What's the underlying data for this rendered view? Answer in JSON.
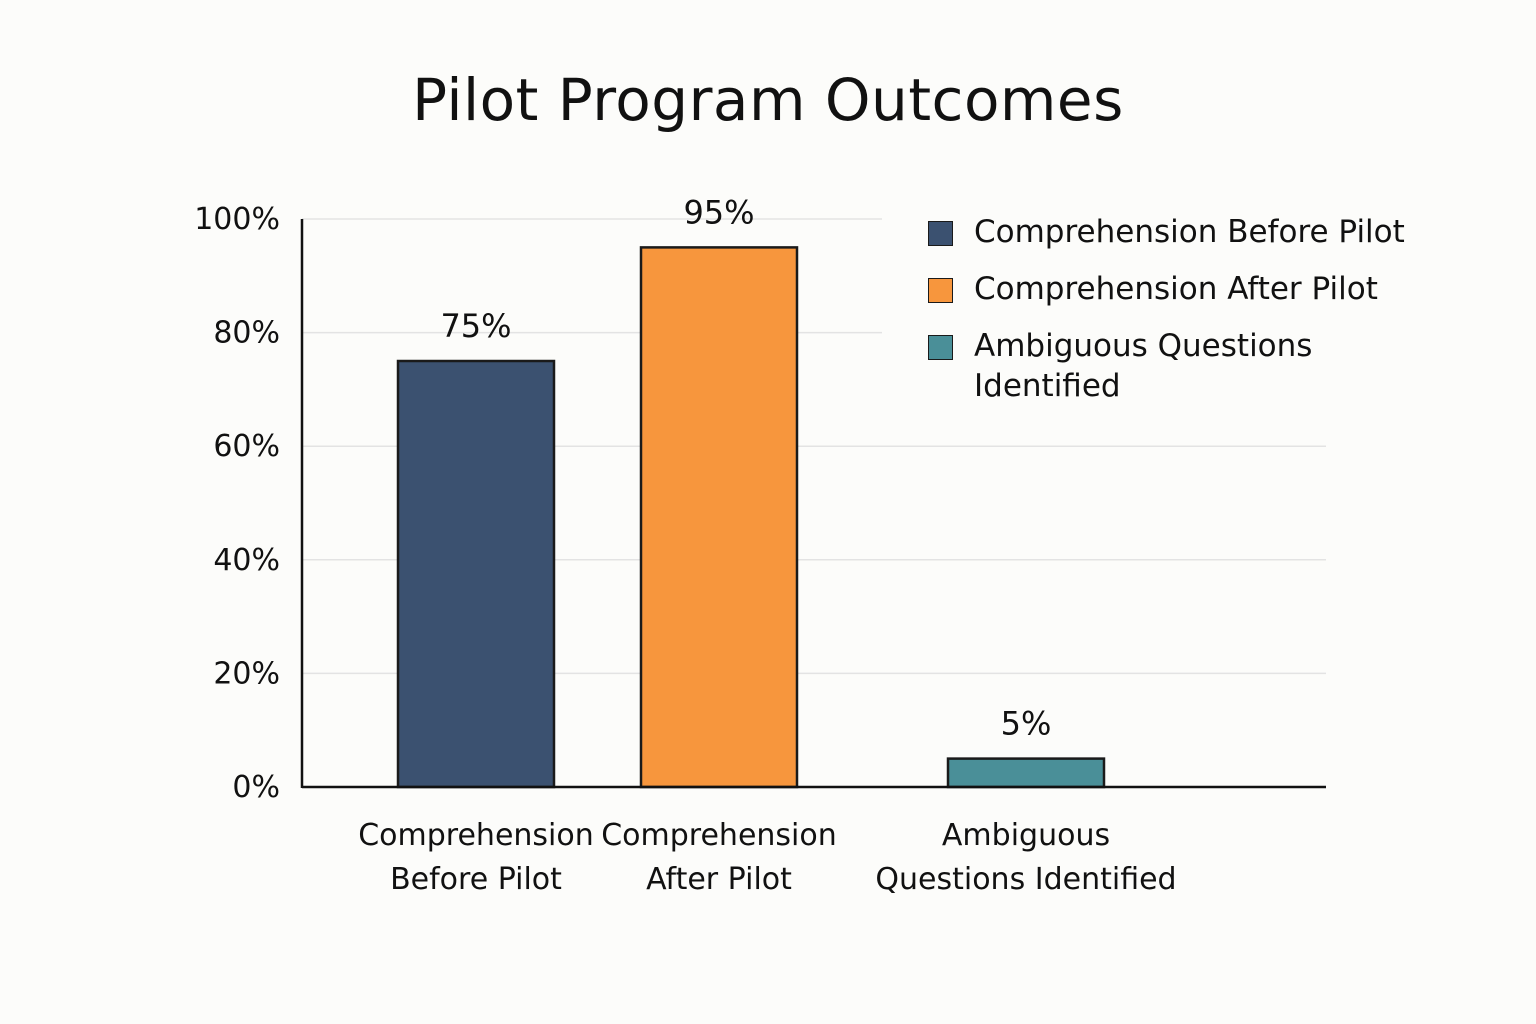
{
  "chart_data": {
    "type": "bar",
    "title": "Pilot Program Outcomes",
    "categories": [
      [
        "Comprehension",
        "Before Pilot"
      ],
      [
        "Comprehension",
        "After Pilot"
      ],
      [
        "Ambiguous",
        "Questions Identified"
      ]
    ],
    "values": [
      75,
      95,
      5
    ],
    "value_labels": [
      "75%",
      "95%",
      "5%"
    ],
    "colors": [
      "#3b5170",
      "#f7963d",
      "#4a8f98"
    ],
    "ylim": [
      0,
      100
    ],
    "yticks": [
      0,
      20,
      40,
      60,
      80,
      100
    ],
    "ytick_labels": [
      "0%",
      "20%",
      "40%",
      "60%",
      "80%",
      "100%"
    ],
    "grid": true,
    "legend_position": "top-right",
    "legend": [
      {
        "label": "Comprehension Before Pilot",
        "color": "#3b5170"
      },
      {
        "label": "Comprehension After Pilot",
        "color": "#f7963d"
      },
      {
        "label": "Ambiguous Questions Identified",
        "color": "#4a8f98"
      }
    ]
  }
}
